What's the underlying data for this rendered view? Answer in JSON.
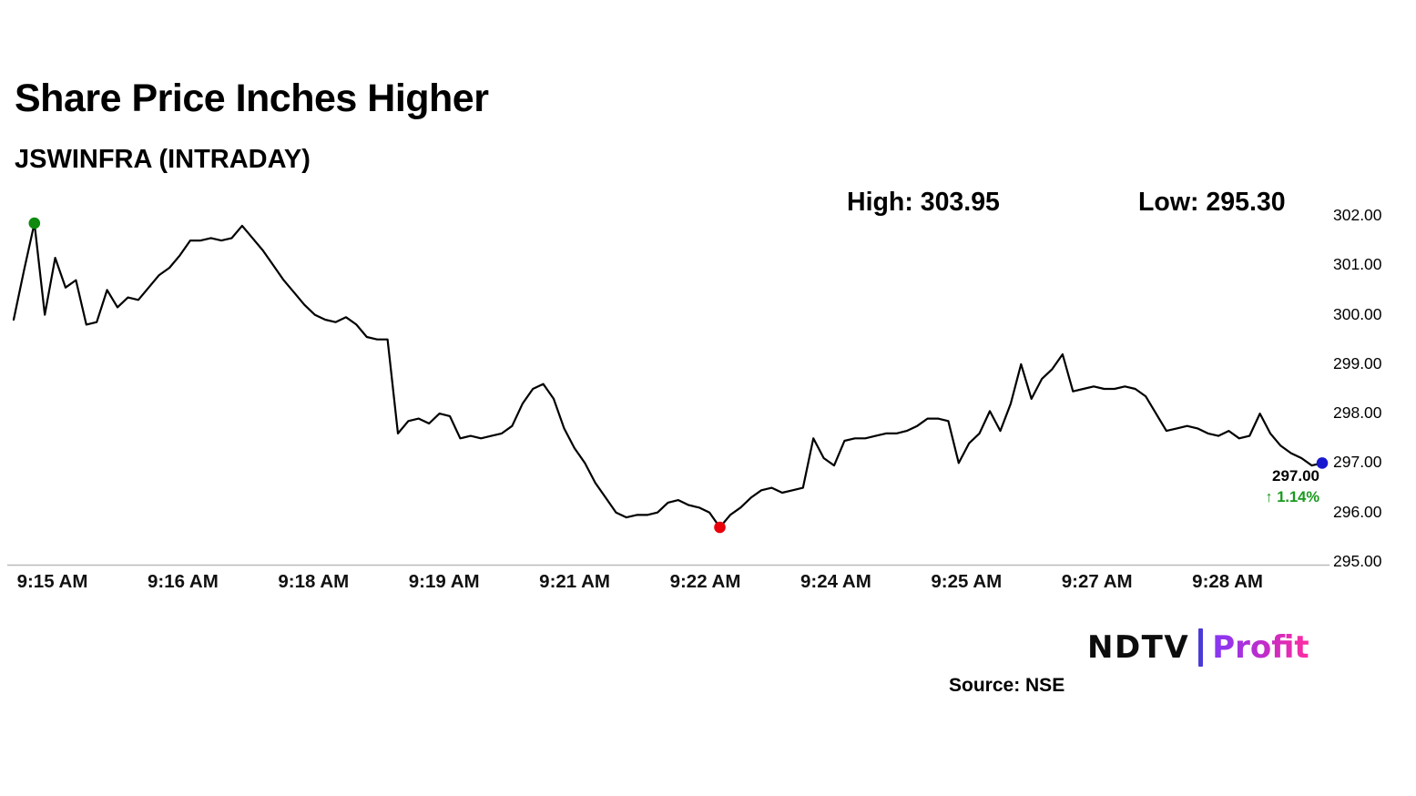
{
  "header": {
    "title": "Share Price Inches Higher",
    "subtitle": "JSWINFRA (INTRADAY)",
    "high": "High: 303.95",
    "low": "Low: 295.30"
  },
  "chart_data": {
    "type": "line",
    "title": "Share Price Inches Higher",
    "subtitle": "JSWINFRA (INTRADAY)",
    "high": 303.95,
    "low": 295.3,
    "last": 297.0,
    "change_pct": 1.14,
    "x_tick_labels": [
      "9:15 AM",
      "9:16 AM",
      "9:18 AM",
      "9:19 AM",
      "9:21 AM",
      "9:22 AM",
      "9:24 AM",
      "9:25 AM",
      "9:27 AM",
      "9:28 AM"
    ],
    "y_ticks": [
      295,
      296,
      297,
      298,
      299,
      300,
      301,
      302
    ],
    "ylim": [
      295,
      302
    ],
    "grid": false,
    "legend": false,
    "line_color": "#000000",
    "up_green": "#189a1e",
    "values": [
      299.9,
      300.9,
      301.85,
      300.0,
      301.15,
      300.55,
      300.7,
      299.8,
      299.85,
      300.5,
      300.15,
      300.35,
      300.3,
      300.55,
      300.8,
      300.95,
      301.2,
      301.5,
      301.5,
      301.55,
      301.5,
      301.55,
      301.8,
      301.55,
      301.3,
      301.0,
      300.7,
      300.45,
      300.2,
      300.0,
      299.9,
      299.85,
      299.95,
      299.8,
      299.55,
      299.5,
      299.5,
      297.6,
      297.85,
      297.9,
      297.8,
      298.0,
      297.95,
      297.5,
      297.55,
      297.5,
      297.55,
      297.6,
      297.75,
      298.2,
      298.5,
      298.6,
      298.3,
      297.7,
      297.3,
      297.0,
      296.6,
      296.3,
      296.0,
      295.9,
      295.95,
      295.95,
      296.0,
      296.2,
      296.25,
      296.15,
      296.1,
      296.0,
      295.7,
      295.95,
      296.1,
      296.3,
      296.45,
      296.5,
      296.4,
      296.45,
      296.5,
      297.5,
      297.1,
      296.95,
      297.45,
      297.5,
      297.5,
      297.55,
      297.6,
      297.6,
      297.65,
      297.75,
      297.9,
      297.9,
      297.85,
      297.0,
      297.4,
      297.6,
      298.05,
      297.65,
      298.2,
      299.0,
      298.3,
      298.7,
      298.9,
      299.2,
      298.45,
      298.5,
      298.55,
      298.5,
      298.5,
      298.55,
      298.5,
      298.35,
      298.0,
      297.65,
      297.7,
      297.75,
      297.7,
      297.6,
      297.55,
      297.65,
      297.5,
      297.55,
      298.0,
      297.6,
      297.35,
      297.2,
      297.1,
      296.95,
      297.0
    ],
    "markers": {
      "start_index": 2,
      "start_color": "#0e8a0e",
      "min_color": "#e8000b",
      "end_color": "#1717cf"
    }
  },
  "annotation": {
    "price": "297.00",
    "change": "↑ 1.14%"
  },
  "footer": {
    "source": "Source: NSE",
    "logo_ndtv": "NDTV",
    "logo_profit": "Profit"
  }
}
